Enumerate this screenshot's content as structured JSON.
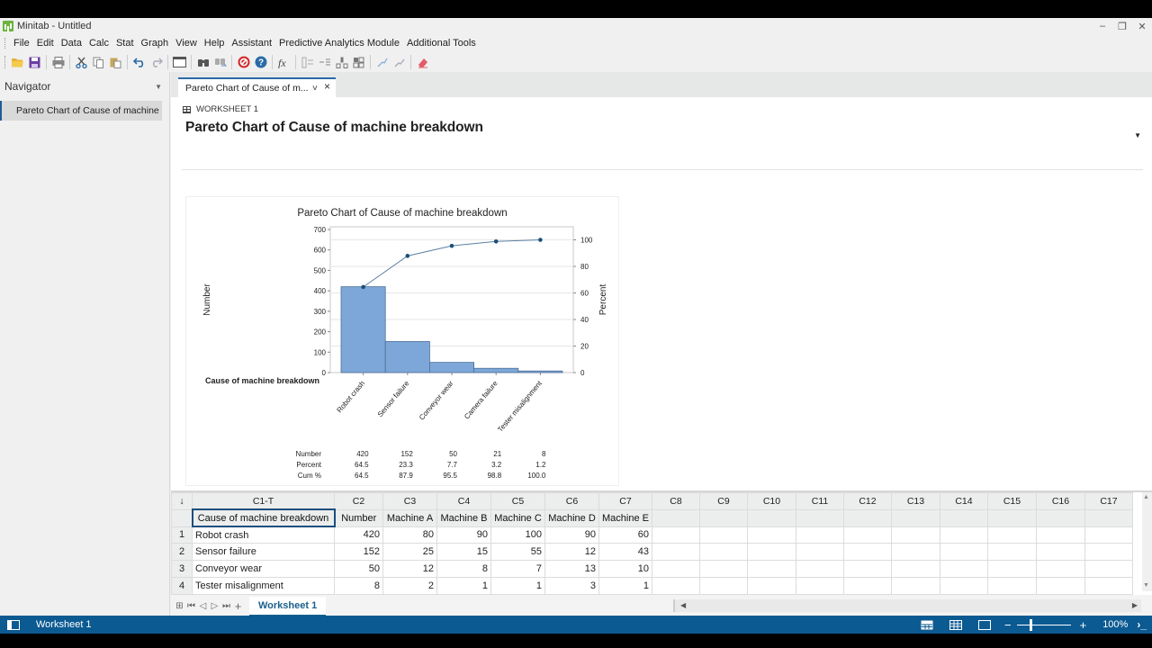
{
  "window": {
    "title": "Minitab - Untitled",
    "controls": {
      "minimize": "–",
      "restore": "❐",
      "close": "✕"
    }
  },
  "menubar": {
    "items": [
      "File",
      "Edit",
      "Data",
      "Calc",
      "Stat",
      "Graph",
      "View",
      "Help",
      "Assistant",
      "Predictive Analytics Module",
      "Additional Tools"
    ]
  },
  "toolbar": {
    "buttons": [
      {
        "name": "open-folder-icon",
        "glyph": "📂"
      },
      {
        "name": "save-icon",
        "glyph": "💾"
      },
      {
        "name": "print-icon",
        "glyph": "🖶"
      },
      {
        "name": "cut-icon",
        "glyph": "✂"
      },
      {
        "name": "copy-icon",
        "glyph": "⎘"
      },
      {
        "name": "paste-icon",
        "glyph": "📋"
      },
      {
        "name": "undo-icon",
        "glyph": "↶"
      },
      {
        "name": "redo-icon",
        "glyph": "↷"
      },
      {
        "name": "window-icon",
        "glyph": "▭"
      },
      {
        "name": "find-icon",
        "glyph": "🔍"
      },
      {
        "name": "find-replace-icon",
        "glyph": "🔎"
      },
      {
        "name": "cancel-icon",
        "glyph": "⊘"
      },
      {
        "name": "help-icon",
        "glyph": "?"
      },
      {
        "name": "formula-icon",
        "glyph": "fx"
      },
      {
        "name": "insert-rows-icon",
        "glyph": "☰"
      },
      {
        "name": "delete-rows-icon",
        "glyph": "☷"
      },
      {
        "name": "move-columns-icon",
        "glyph": "⇅"
      },
      {
        "name": "insert-cells-icon",
        "glyph": "▦"
      },
      {
        "name": "brush-icon",
        "glyph": "⌁"
      },
      {
        "name": "graph-edit-icon",
        "glyph": "⌇"
      },
      {
        "name": "eraser-icon",
        "glyph": "⌫"
      }
    ]
  },
  "navigator": {
    "title": "Navigator",
    "items": [
      "Pareto Chart of Cause of machine ..."
    ]
  },
  "output": {
    "tab_label": "Pareto Chart of Cause of m...",
    "tab_dropdown": "˅",
    "tab_close": "×",
    "worksheet_label": "WORKSHEET 1",
    "title": "Pareto Chart of Cause of machine breakdown",
    "options_arrow": "▼"
  },
  "chart_data": {
    "type": "bar",
    "subtype": "pareto",
    "title": "Pareto Chart of Cause of machine breakdown",
    "xlabel": "Cause of machine breakdown",
    "ylabel": "Number",
    "y2label": "Percent",
    "ylim": [
      0,
      700
    ],
    "y2lim": [
      0,
      100
    ],
    "yticks": [
      0,
      100,
      200,
      300,
      400,
      500,
      600,
      700
    ],
    "y2ticks": [
      0,
      20,
      40,
      60,
      80,
      100
    ],
    "grid": true,
    "categories": [
      "Robot crash",
      "Sensor failure",
      "Conveyor wear",
      "Camera failure",
      "Tester misalignment"
    ],
    "series": [
      {
        "name": "Number",
        "type": "bar",
        "color": "#7da7d8",
        "values": [
          420,
          152,
          50,
          21,
          8
        ]
      },
      {
        "name": "Cum %",
        "type": "line",
        "color": "#1a4f7a",
        "values": [
          64.5,
          87.9,
          95.5,
          98.8,
          100.0
        ]
      }
    ],
    "table": {
      "rows": [
        {
          "label": "Number",
          "values": [
            "420",
            "152",
            "50",
            "21",
            "8"
          ]
        },
        {
          "label": "Percent",
          "values": [
            "64.5",
            "23.3",
            "7.7",
            "3.2",
            "1.2"
          ]
        },
        {
          "label": "Cum %",
          "values": [
            "64.5",
            "87.9",
            "95.5",
            "98.8",
            "100.0"
          ]
        }
      ]
    }
  },
  "worksheet": {
    "corner": "↓",
    "columns": [
      "C1-T",
      "C2",
      "C3",
      "C4",
      "C5",
      "C6",
      "C7",
      "C8",
      "C9",
      "C10",
      "C11",
      "C12",
      "C13",
      "C14",
      "C15",
      "C16",
      "C17"
    ],
    "names": [
      "Cause of machine breakdown",
      "Number",
      "Machine A",
      "Machine B",
      "Machine C",
      "Machine D",
      "Machine E",
      "",
      "",
      "",
      "",
      "",
      "",
      "",
      "",
      "",
      ""
    ],
    "rows": [
      {
        "n": "1",
        "cells": [
          "Robot crash",
          "420",
          "80",
          "90",
          "100",
          "90",
          "60"
        ]
      },
      {
        "n": "2",
        "cells": [
          "Sensor failure",
          "152",
          "25",
          "15",
          "55",
          "12",
          "43"
        ]
      },
      {
        "n": "3",
        "cells": [
          "Conveyor wear",
          "50",
          "12",
          "8",
          "7",
          "13",
          "10"
        ]
      },
      {
        "n": "4",
        "cells": [
          "Tester misalignment",
          "8",
          "2",
          "1",
          "1",
          "3",
          "1"
        ]
      }
    ],
    "sheet_tab": "Worksheet 1"
  },
  "statusbar": {
    "worksheet": "Worksheet 1",
    "zoom": "100%",
    "zoom_minus": "−",
    "zoom_plus": "+",
    "console": "›_"
  },
  "colors": {
    "accent": "#0b5a92",
    "bar_fill": "#7da7d8",
    "bar_stroke": "#4d6f97",
    "line": "#1a4f7a"
  }
}
